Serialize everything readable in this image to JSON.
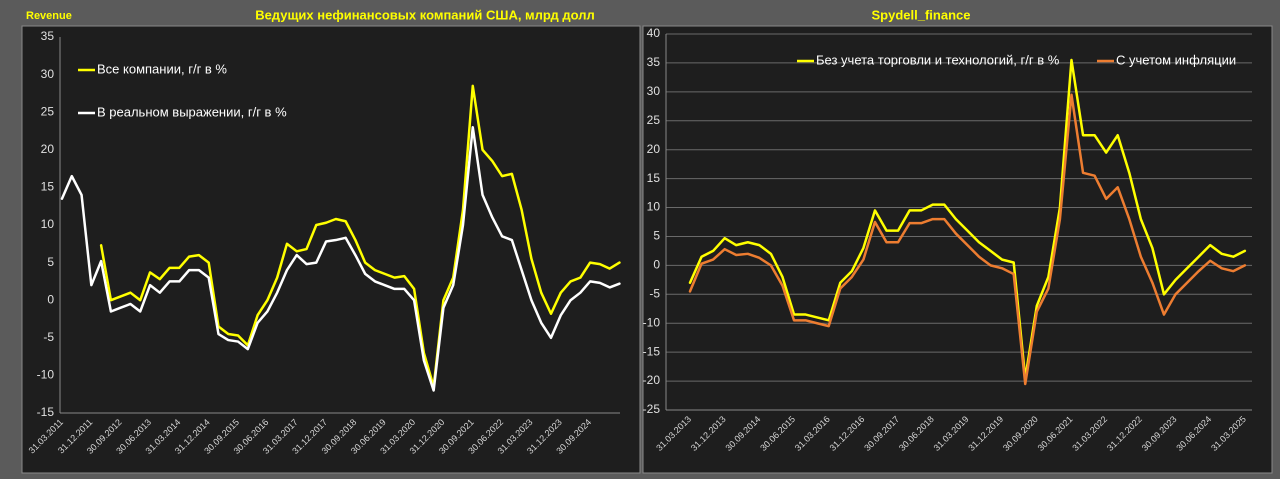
{
  "chart_data": [
    {
      "type": "line",
      "annotation": "Revenue",
      "title": "Ведущих нефинансовых компаний США, млрд долл",
      "categories": [
        "31.03.2011",
        null,
        null,
        "31.12.2011",
        null,
        null,
        "30.09.2012",
        null,
        null,
        "30.06.2013",
        null,
        null,
        "31.03.2014",
        null,
        null,
        "31.12.2014",
        null,
        null,
        "30.09.2015",
        null,
        null,
        "30.06.2016",
        null,
        null,
        "31.03.2017",
        null,
        null,
        "31.12.2017",
        null,
        null,
        "30.09.2018",
        null,
        null,
        "30.06.2019",
        null,
        null,
        "31.03.2020",
        null,
        null,
        "31.12.2020",
        null,
        null,
        "30.09.2021",
        null,
        null,
        "30.06.2022",
        null,
        null,
        "31.03.2023",
        null,
        null,
        "31.12.2023",
        null,
        null,
        "30.09.2024",
        null,
        null,
        null
      ],
      "series": [
        {
          "name": "Все компании, г/г в %",
          "color": "#ffff00",
          "values": [
            null,
            null,
            null,
            null,
            7.3,
            0,
            0.5,
            1,
            0,
            3.7,
            2.8,
            4.3,
            4.3,
            5.8,
            6,
            5,
            -3.5,
            -4.5,
            -4.7,
            -6,
            -2,
            0,
            3,
            7.5,
            6.5,
            6.8,
            10,
            10.3,
            10.8,
            10.5,
            8,
            5,
            4,
            3.5,
            3,
            3.2,
            1.5,
            -7,
            -11.5,
            0,
            3,
            12,
            28.5,
            20,
            18.5,
            16.5,
            16.8,
            12,
            5.5,
            1,
            -1.8,
            1,
            2.5,
            3,
            5,
            4.8,
            4.2,
            5
          ]
        },
        {
          "name": "В реальном выражении, г/г в %",
          "color": "#ffffff",
          "values": [
            13.5,
            16.5,
            14,
            2,
            5.2,
            -1.5,
            -1,
            -0.5,
            -1.5,
            2,
            1,
            2.5,
            2.5,
            4,
            4,
            3,
            -4.5,
            -5.3,
            -5.5,
            -6.5,
            -3,
            -1.5,
            1,
            4,
            6,
            4.8,
            5,
            7.8,
            8,
            8.3,
            6,
            3.5,
            2.5,
            2,
            1.5,
            1.5,
            0,
            -8,
            -12,
            -1,
            2,
            10,
            23,
            14,
            11,
            8.5,
            8,
            4,
            0,
            -3,
            -5,
            -2,
            0,
            1,
            2.5,
            2.3,
            1.7,
            2.2
          ]
        }
      ],
      "ylim": [
        -15,
        35
      ],
      "yticks": [
        -15,
        -10,
        -5,
        0,
        5,
        10,
        15,
        20,
        25,
        30,
        35
      ],
      "grid": false,
      "legend": "upper left"
    },
    {
      "type": "line",
      "title": "Spydell_finance",
      "categories": [
        "31.03.2013",
        null,
        null,
        "31.12.2013",
        null,
        null,
        "30.09.2014",
        null,
        null,
        "30.06.2015",
        null,
        null,
        "31.03.2016",
        null,
        null,
        "31.12.2016",
        null,
        null,
        "30.09.2017",
        null,
        null,
        "30.06.2018",
        null,
        null,
        "31.03.2019",
        null,
        null,
        "31.12.2019",
        null,
        null,
        "30.09.2020",
        null,
        null,
        "30.06.2021",
        null,
        null,
        "31.03.2022",
        null,
        null,
        "31.12.2022",
        null,
        null,
        "30.09.2023",
        null,
        null,
        "30.06.2024",
        null,
        null,
        "31.03.2025"
      ],
      "series": [
        {
          "name": "Без учета торговли и технологий, г/г в %",
          "color": "#ffff00",
          "values": [
            -3,
            1.5,
            2.5,
            4.7,
            3.5,
            4,
            3.5,
            2,
            -2,
            -8.5,
            -8.5,
            -9,
            -9.5,
            -3,
            -1,
            3,
            9.5,
            6,
            6,
            9.5,
            9.5,
            10.5,
            10.5,
            8,
            6,
            4,
            2.5,
            1,
            0.5,
            -19.5,
            -7,
            -2,
            10,
            35.5,
            22.5,
            22.5,
            19.5,
            22.5,
            16,
            8,
            3,
            -5,
            -2.5,
            -0.5,
            1.5,
            3.5,
            2,
            1.5,
            2.5
          ]
        },
        {
          "name": "С учетом инфляции",
          "color": "#ed7d31",
          "values": [
            -4.5,
            0.3,
            1,
            2.8,
            1.8,
            2,
            1.3,
            0,
            -3.5,
            -9.5,
            -9.5,
            -10,
            -10.5,
            -4,
            -2,
            1,
            7.5,
            4,
            4,
            7.3,
            7.3,
            8,
            8,
            5.5,
            3.5,
            1.5,
            0,
            -0.5,
            -1.5,
            -20.5,
            -8,
            -4,
            8,
            29.5,
            16,
            15.5,
            11.5,
            13.5,
            8,
            1.5,
            -3,
            -8.5,
            -5,
            -3,
            -1,
            0.8,
            -0.5,
            -1,
            0
          ]
        }
      ],
      "ylim": [
        -25,
        40
      ],
      "yticks": [
        -25,
        -20,
        -15,
        -10,
        -5,
        0,
        5,
        10,
        15,
        20,
        25,
        30,
        35,
        40
      ],
      "grid": true,
      "legend": "upper center"
    }
  ]
}
